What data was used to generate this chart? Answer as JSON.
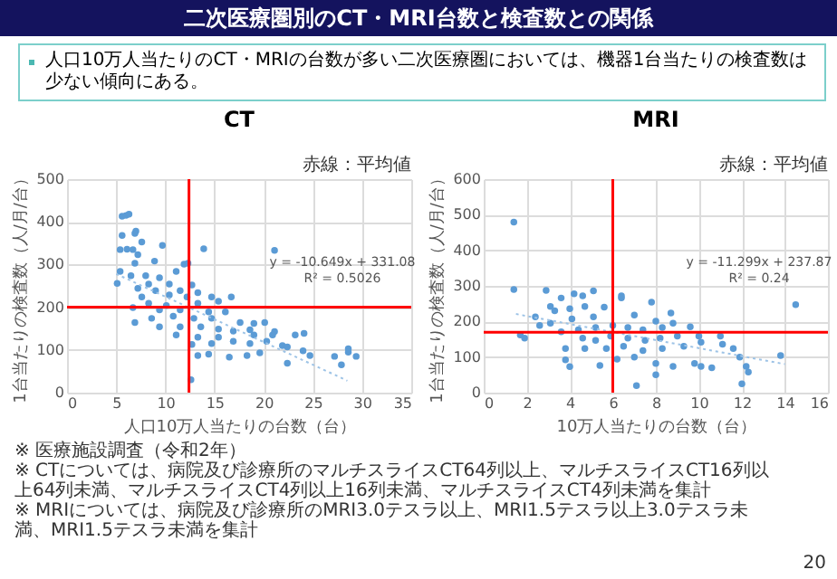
{
  "chart_data": [
    {
      "type": "other",
      "title": "二次医療圏別のCT・MRI台数と検査数との関係",
      "subtitle": "人口10万人当たりのCT・MRIの台数が多い二次医療圏においては、機器1台当たりの検査数は少ない傾向にある。",
      "annotations": [
        "※ 医療施設調査（令和2年）",
        "※ CTについては、病院及び診療所のマルチスライスCT64列以上、マルチスライスCT16列以上64列未満、マルチスライスCT4列以上16列未満、マルチスライスCT4列未満を集計",
        "※ MRIについては、病院及び診療所のMRI3.0テスラ以上、MRI1.5テスラ以上3.0テスラ未満、MRI1.5テスラ未満を集計",
        "20"
      ]
    },
    {
      "type": "scatter",
      "title": "CT",
      "xlabel": "人口10万人当たりの台数（台）",
      "ylabel": "1台当たりの検査数（人/月/台）",
      "xlim": [
        0,
        35
      ],
      "xticks": [
        0,
        5,
        10,
        15,
        20,
        25,
        30,
        35
      ],
      "ylim": [
        0,
        500
      ],
      "yticks": [
        0,
        100,
        200,
        300,
        400,
        500
      ],
      "grid": true,
      "series": [
        {
          "color": "#5b9bd5",
          "marker": "circle",
          "x": [
            6.0,
            6.3,
            5.6,
            7.0,
            6.9,
            5.6,
            5.4,
            6.1,
            6.7,
            7.6,
            9.7,
            13.9,
            21.1,
            7.2,
            8.9,
            11.9,
            12.3,
            6.9,
            5.4,
            5.1,
            6.5,
            8.0,
            9.4,
            11.1,
            8.3,
            10.4,
            12.7,
            7.2,
            9.0,
            11.5,
            13.3,
            7.6,
            10.4,
            12.2,
            14.7,
            16.7,
            8.3,
            10.1,
            13.3,
            15.4,
            6.7,
            9.4,
            11.5,
            14.4,
            16.1,
            6.9,
            8.6,
            10.8,
            12.9,
            14.7,
            17.6,
            19.0,
            20.1,
            9.4,
            11.5,
            13.6,
            15.4,
            16.9,
            18.6,
            21.1,
            11.1,
            13.3,
            15.4,
            19.0,
            20.9,
            23.2,
            24.1,
            12.7,
            14.7,
            16.9,
            18.6,
            20.3,
            21.9,
            22.4,
            13.3,
            14.4,
            16.5,
            18.3,
            19.6,
            24.0,
            24.7,
            27.2,
            28.6,
            28.6,
            29.4,
            27.9,
            22.4,
            12.6
          ],
          "values": [
            415,
            418,
            413,
            378,
            373,
            368,
            335,
            336,
            335,
            353,
            345,
            337,
            333,
            323,
            308,
            301,
            303,
            303,
            284,
            256,
            274,
            274,
            269,
            284,
            254,
            254,
            252,
            244,
            239,
            239,
            234,
            224,
            229,
            224,
            224,
            224,
            209,
            204,
            209,
            214,
            199,
            194,
            194,
            189,
            189,
            164,
            174,
            179,
            174,
            174,
            164,
            162,
            164,
            154,
            154,
            154,
            149,
            144,
            147,
            143,
            135,
            130,
            130,
            135,
            135,
            135,
            139,
            113,
            115,
            120,
            115,
            120,
            110,
            107,
            87,
            90,
            83,
            87,
            93,
            98,
            87,
            85,
            103,
            95,
            85,
            65,
            69,
            30
          ]
        },
        {
          "type": "line",
          "line_style": "dotted",
          "color": "#9dc3e6",
          "x": [
            5,
            28.5
          ],
          "values": [
            278,
            28
          ]
        }
      ],
      "ref_lines": [
        {
          "axis": "x",
          "value": 12.4,
          "color": "#ff0000"
        },
        {
          "axis": "y",
          "value": 200,
          "color": "#ff0000"
        }
      ],
      "annotations": [
        "赤線：平均値",
        "y = -10.649x + 331.08",
        "R² = 0.5026"
      ]
    },
    {
      "type": "scatter",
      "title": "MRI",
      "xlabel": "10万人当たりの台数（台）",
      "ylabel": "1台当たりの検査数（人/月/台）",
      "xlim": [
        0,
        16
      ],
      "xticks": [
        0,
        2,
        4,
        6,
        8,
        10,
        12,
        14,
        16
      ],
      "ylim": [
        0,
        600
      ],
      "yticks": [
        0,
        100,
        200,
        300,
        400,
        500,
        600
      ],
      "grid": true,
      "series": [
        {
          "color": "#5b9bd5",
          "marker": "circle",
          "x": [
            1.4,
            1.4,
            2.9,
            5.1,
            14.5,
            1.7,
            1.9,
            2.6,
            2.4,
            3.1,
            3.6,
            4.2,
            4.6,
            3.3,
            4.0,
            4.7,
            5.6,
            6.4,
            6.4,
            7.8,
            8.7,
            8.0,
            7.0,
            5.1,
            4.1,
            3.1,
            3.6,
            4.4,
            5.2,
            6.0,
            6.7,
            7.4,
            8.3,
            8.8,
            9.6,
            4.6,
            5.2,
            5.9,
            6.7,
            7.5,
            8.2,
            9.0,
            10.0,
            11.0,
            3.8,
            4.7,
            5.7,
            6.5,
            7.4,
            8.3,
            9.3,
            10.1,
            11.1,
            11.6,
            3.8,
            4.0,
            5.4,
            6.2,
            7.0,
            8.0,
            8.8,
            9.8,
            10.1,
            10.6,
            11.9,
            12.2,
            12.3,
            13.8,
            8.0,
            7.1,
            12.0
          ],
          "values": [
            479,
            290,
            287,
            286,
            247,
            162,
            153,
            189,
            213,
            242,
            266,
            278,
            272,
            230,
            236,
            242,
            240,
            266,
            272,
            254,
            224,
            201,
            218,
            213,
            207,
            195,
            171,
            177,
            183,
            189,
            183,
            177,
            183,
            195,
            185,
            153,
            147,
            159,
            153,
            147,
            153,
            159,
            159,
            159,
            124,
            124,
            124,
            130,
            118,
            124,
            130,
            142,
            136,
            124,
            92,
            73,
            76,
            94,
            100,
            82,
            74,
            82,
            74,
            70,
            100,
            74,
            58,
            104,
            50,
            20,
            25
          ]
        },
        {
          "type": "line",
          "line_style": "dotted",
          "color": "#9dc3e6",
          "x": [
            1.5,
            14
          ],
          "values": [
            221,
            80
          ]
        }
      ],
      "ref_lines": [
        {
          "axis": "x",
          "value": 6,
          "color": "#ff0000"
        },
        {
          "axis": "y",
          "value": 170,
          "color": "#ff0000"
        }
      ],
      "annotations": [
        "赤線：平均値",
        "y = -11.299x + 237.87",
        "R² = 0.24"
      ]
    }
  ]
}
